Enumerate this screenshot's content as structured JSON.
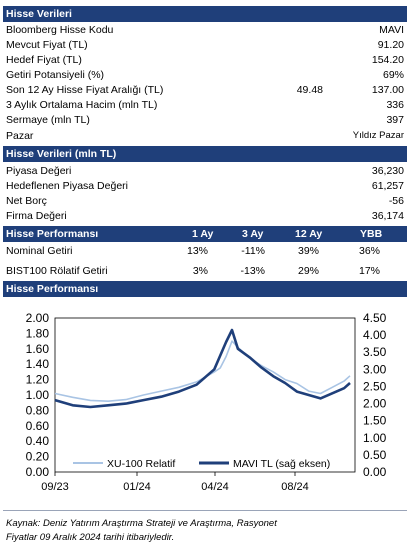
{
  "stock_data": {
    "header": "Hisse Verileri",
    "rows": [
      {
        "label": "Bloomberg Hisse Kodu",
        "value": "MAVI"
      },
      {
        "label": "Mevcut Fiyat (TL)",
        "value": "91.20"
      },
      {
        "label": "Hedef Fiyat (TL)",
        "value": "154.20"
      },
      {
        "label": "Getiri Potansiyeli (%)",
        "value": "69%"
      },
      {
        "label": "Son 12 Ay Hisse Fiyat Aralığı (TL)",
        "low": "49.48",
        "value": "137.00"
      },
      {
        "label": "3 Aylık Ortalama Hacim (mln TL)",
        "value": "336"
      },
      {
        "label": "Sermaye (mln TL)",
        "value": "397"
      },
      {
        "label": "Pazar",
        "value": "Yıldız Pazar"
      }
    ]
  },
  "stock_data_mln": {
    "header": "Hisse Verileri (mln TL)",
    "rows": [
      {
        "label": "Piyasa Değeri",
        "value": "36,230"
      },
      {
        "label": "Hedeflenen Piyasa Değeri",
        "value": "61,257"
      },
      {
        "label": "Net Borç",
        "value": "-56"
      },
      {
        "label": "Firma Değeri",
        "value": "36,174"
      }
    ]
  },
  "performance": {
    "header": "Hisse Performansı",
    "columns": [
      "1 Ay",
      "3 Ay",
      "12 Ay",
      "YBB"
    ],
    "rows": [
      {
        "label": "Nominal Getiri",
        "values": [
          "13%",
          "-11%",
          "39%",
          "36%"
        ]
      },
      {
        "label": "BIST100 Rölatif Getiri",
        "values": [
          "3%",
          "-13%",
          "29%",
          "17%"
        ]
      }
    ]
  },
  "chart_section": {
    "header": "Hisse Performansı"
  },
  "chart_data": {
    "type": "line",
    "x_ticks": [
      "09/23",
      "01/24",
      "04/24",
      "08/24"
    ],
    "y_left": {
      "ticks": [
        "0.00",
        "0.20",
        "0.40",
        "0.60",
        "0.80",
        "1.00",
        "1.20",
        "1.40",
        "1.60",
        "1.80",
        "2.00"
      ],
      "lim": [
        0,
        2.0
      ]
    },
    "y_right": {
      "ticks": [
        "0.00",
        "0.50",
        "1.00",
        "1.50",
        "2.00",
        "2.50",
        "3.00",
        "3.50",
        "4.00",
        "4.50"
      ],
      "lim": [
        0,
        4.5
      ]
    },
    "x_months": [
      "2023-09",
      "2024-12"
    ],
    "series": [
      {
        "name": "XU-100 Relatif",
        "axis": "left",
        "color": "#a9c4e4",
        "points": [
          [
            0,
            1.02
          ],
          [
            3,
            0.97
          ],
          [
            6,
            0.93
          ],
          [
            9,
            0.92
          ],
          [
            12,
            0.94
          ],
          [
            15,
            1.0
          ],
          [
            18,
            1.05
          ],
          [
            21,
            1.1
          ],
          [
            24,
            1.17
          ],
          [
            27,
            1.3
          ],
          [
            28,
            1.35
          ],
          [
            29,
            1.5
          ],
          [
            30,
            1.7
          ],
          [
            31,
            1.62
          ],
          [
            33,
            1.48
          ],
          [
            35,
            1.38
          ],
          [
            37,
            1.3
          ],
          [
            39,
            1.2
          ],
          [
            41,
            1.15
          ],
          [
            43,
            1.05
          ],
          [
            45,
            1.02
          ],
          [
            47,
            1.1
          ],
          [
            49,
            1.18
          ],
          [
            50,
            1.25
          ]
        ]
      },
      {
        "name": "MAVI TL (sağ eksen)",
        "axis": "right",
        "color": "#1f3f7a",
        "points": [
          [
            0,
            2.1
          ],
          [
            3,
            1.95
          ],
          [
            6,
            1.9
          ],
          [
            9,
            1.95
          ],
          [
            12,
            2.0
          ],
          [
            15,
            2.1
          ],
          [
            18,
            2.2
          ],
          [
            21,
            2.35
          ],
          [
            24,
            2.55
          ],
          [
            27,
            3.0
          ],
          [
            28,
            3.4
          ],
          [
            29,
            3.8
          ],
          [
            30,
            4.15
          ],
          [
            31,
            3.6
          ],
          [
            33,
            3.35
          ],
          [
            35,
            3.05
          ],
          [
            37,
            2.8
          ],
          [
            39,
            2.6
          ],
          [
            41,
            2.35
          ],
          [
            43,
            2.25
          ],
          [
            45,
            2.15
          ],
          [
            47,
            2.3
          ],
          [
            49,
            2.45
          ],
          [
            50,
            2.6
          ]
        ]
      }
    ]
  },
  "footnote": {
    "line1": "Kaynak: Deniz Yatırım Araştırma Strateji ve Araştırma, Rasyonet",
    "line2": "Fiyatlar 09 Aralık 2024 tarihi itibariyledir."
  }
}
